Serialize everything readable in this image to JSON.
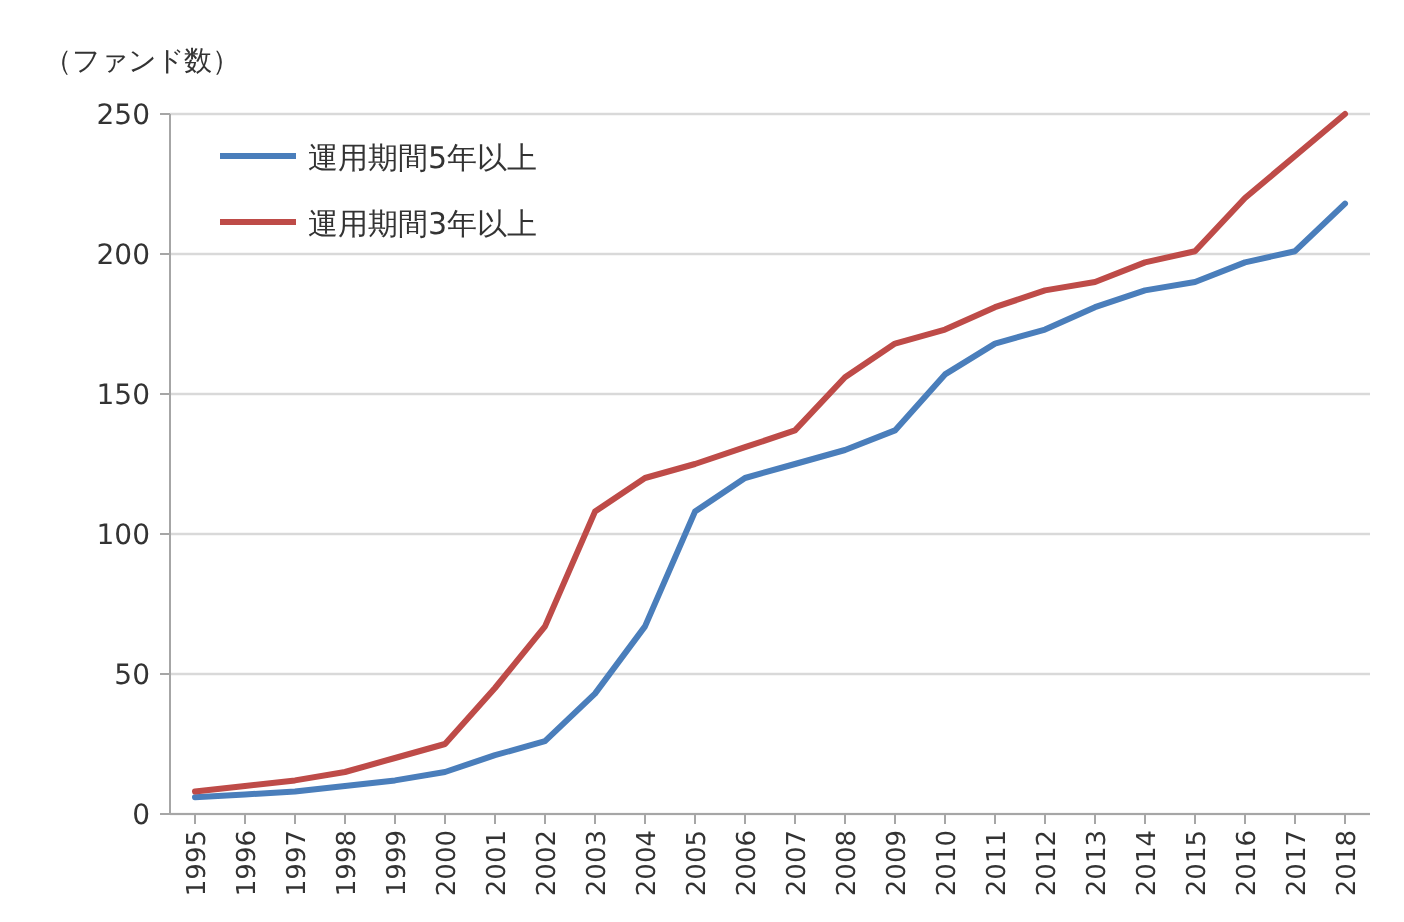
{
  "chart_data": {
    "type": "line",
    "ylabel": "（ファンド数）",
    "x": [
      1995,
      1996,
      1997,
      1998,
      1999,
      2000,
      2001,
      2002,
      2003,
      2004,
      2005,
      2006,
      2007,
      2008,
      2009,
      2010,
      2011,
      2012,
      2013,
      2014,
      2015,
      2016,
      2017,
      2018
    ],
    "series": [
      {
        "name": "運用期間5年以上",
        "color": "#4a7ebb",
        "values": [
          6,
          7,
          8,
          10,
          12,
          15,
          21,
          26,
          43,
          67,
          108,
          120,
          125,
          130,
          137,
          157,
          168,
          173,
          181,
          187,
          190,
          197,
          201,
          218
        ]
      },
      {
        "name": "運用期間3年以上",
        "color": "#be4b48",
        "values": [
          8,
          10,
          12,
          15,
          20,
          25,
          45,
          67,
          108,
          120,
          125,
          131,
          137,
          156,
          168,
          173,
          181,
          187,
          190,
          197,
          201,
          220,
          235,
          250
        ]
      }
    ],
    "xlim": [
      1994.5,
      2018.5
    ],
    "xticks": [
      1995,
      1996,
      1997,
      1998,
      1999,
      2000,
      2001,
      2002,
      2003,
      2004,
      2005,
      2006,
      2007,
      2008,
      2009,
      2010,
      2011,
      2012,
      2013,
      2014,
      2015,
      2016,
      2017,
      2018
    ],
    "ylim": [
      0,
      250
    ],
    "yticks": [
      0,
      50,
      100,
      150,
      200,
      250
    ],
    "grid": "y",
    "legend": "top left",
    "marker": "none",
    "line_style": "solid"
  }
}
